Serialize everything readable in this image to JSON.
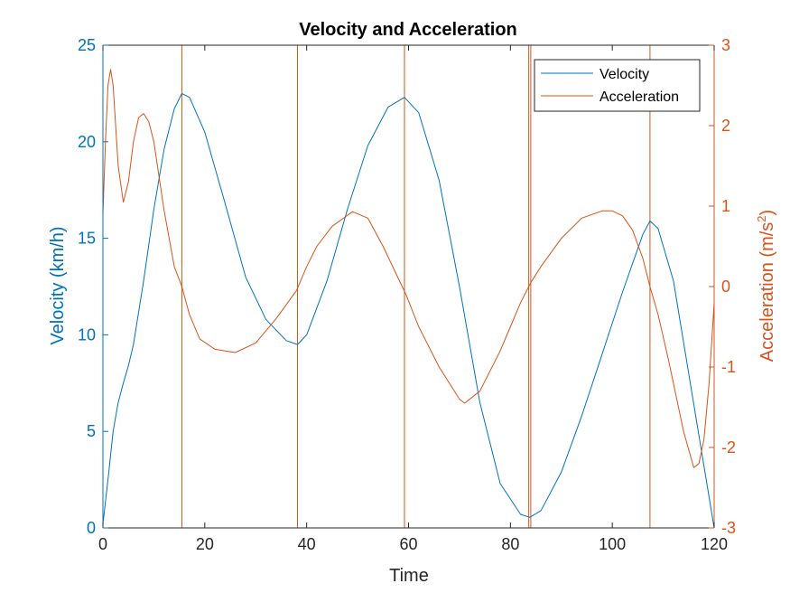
{
  "chart_data": {
    "type": "line",
    "title": "Velocity and Acceleration",
    "xlabel": "Time",
    "ylabel_left": "Velocity (km/h)",
    "ylabel_right_base": "Acceleration (m/s",
    "ylabel_right_sup": "2",
    "ylabel_right_end": ")",
    "xlim": [
      0,
      120
    ],
    "ylim_left": [
      0,
      25
    ],
    "ylim_right": [
      -3,
      3
    ],
    "xticks": [
      "0",
      "20",
      "40",
      "60",
      "80",
      "100",
      "120"
    ],
    "yticks_left": [
      "0",
      "5",
      "10",
      "15",
      "20",
      "25"
    ],
    "yticks_right": [
      "-3",
      "-2",
      "-1",
      "0",
      "1",
      "2",
      "3"
    ],
    "legend": {
      "position": "top-right",
      "entries": [
        "Velocity",
        "Acceleration"
      ]
    },
    "colors": {
      "velocity": "#0072BD",
      "acceleration": "#D95319",
      "vlines": "#D95319"
    },
    "vertical_lines_x": [
      15.5,
      38.2,
      59.2,
      83.6,
      84.0,
      107.4
    ],
    "series": [
      {
        "name": "Velocity",
        "axis": "left",
        "x": [
          0,
          1,
          2,
          3,
          4,
          5,
          6,
          8,
          10,
          12,
          14,
          15.5,
          17,
          20,
          24,
          28,
          32,
          36,
          38.2,
          40,
          44,
          48,
          52,
          56,
          59.2,
          62,
          66,
          70,
          74,
          78,
          82,
          83.8,
          86,
          90,
          94,
          98,
          102,
          106,
          107.4,
          109,
          112,
          115,
          118,
          120
        ],
        "values": [
          0.2,
          2.5,
          5.0,
          6.5,
          7.5,
          8.4,
          9.5,
          12.8,
          16.5,
          19.6,
          21.7,
          22.5,
          22.3,
          20.5,
          16.8,
          13.0,
          10.8,
          9.7,
          9.5,
          10.0,
          12.8,
          16.5,
          19.8,
          21.8,
          22.3,
          21.5,
          18.0,
          12.5,
          6.5,
          2.3,
          0.7,
          0.55,
          0.9,
          2.9,
          5.8,
          9.0,
          12.2,
          15.2,
          15.9,
          15.5,
          12.8,
          8.0,
          3.2,
          0.0
        ]
      },
      {
        "name": "Acceleration",
        "axis": "right",
        "x": [
          0,
          0.5,
          1,
          1.5,
          2,
          3,
          4,
          5,
          6,
          7,
          8,
          9,
          10,
          12,
          14,
          15.5,
          17,
          19,
          22,
          26,
          30,
          34,
          38,
          40,
          42,
          45,
          49,
          52,
          55,
          58,
          59.5,
          62,
          66,
          70,
          71,
          74,
          78,
          80,
          82,
          84,
          86,
          90,
          94,
          98,
          100,
          102,
          104,
          106,
          107.4,
          109,
          111,
          114,
          116,
          117,
          118,
          119,
          120
        ],
        "values": [
          0.9,
          1.8,
          2.5,
          2.7,
          2.5,
          1.5,
          1.05,
          1.3,
          1.8,
          2.1,
          2.15,
          2.05,
          1.8,
          0.95,
          0.25,
          0.0,
          -0.35,
          -0.65,
          -0.78,
          -0.82,
          -0.7,
          -0.4,
          -0.05,
          0.25,
          0.5,
          0.75,
          0.93,
          0.85,
          0.5,
          0.1,
          -0.1,
          -0.5,
          -1.0,
          -1.4,
          -1.45,
          -1.3,
          -0.8,
          -0.5,
          -0.2,
          0.05,
          0.25,
          0.6,
          0.85,
          0.94,
          0.94,
          0.88,
          0.7,
          0.35,
          0.0,
          -0.35,
          -0.9,
          -1.8,
          -2.25,
          -2.2,
          -1.9,
          -1.2,
          -0.2
        ]
      }
    ]
  }
}
